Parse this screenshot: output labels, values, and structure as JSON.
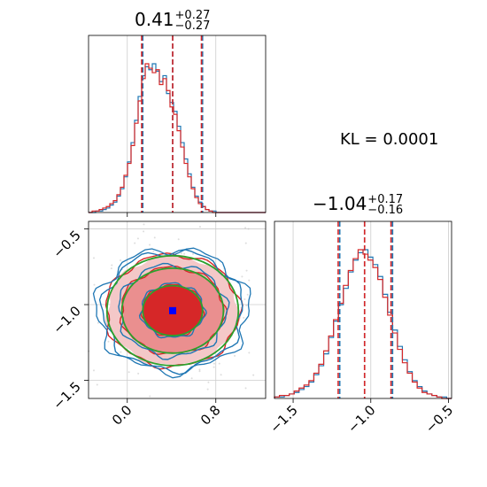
{
  "annotation": {
    "kl_text": "KL = 0.0001"
  },
  "titles": {
    "p1": {
      "value": "0.41",
      "plus": "+0.27",
      "minus": "−0.27"
    },
    "p2": {
      "value": "−1.04",
      "plus": "+0.17",
      "minus": "−0.16"
    }
  },
  "colors": {
    "blue": "#1f77b4",
    "red": "#d62728",
    "green": "#2ca02c",
    "marker": "#0000ff"
  },
  "chart_data": [
    {
      "type": "histogram",
      "panel": "marginal-param-1",
      "xlim": [
        -0.35,
        1.25
      ],
      "bins_edges_start": -0.35,
      "bin_width": 0.032,
      "series": [
        {
          "color": "blue",
          "values": [
            0,
            0,
            1,
            1,
            2,
            3,
            5,
            7,
            11,
            16,
            24,
            34,
            47,
            62,
            78,
            92,
            98,
            96,
            100,
            95,
            88,
            92,
            80,
            74,
            68,
            58,
            47,
            36,
            26,
            17,
            11,
            7,
            4,
            2,
            1,
            1,
            0,
            0,
            0,
            0,
            0,
            0,
            0,
            0,
            0,
            0,
            0,
            0,
            0,
            0
          ]
        },
        {
          "color": "red",
          "values": [
            0,
            1,
            1,
            2,
            3,
            4,
            6,
            8,
            12,
            17,
            25,
            33,
            45,
            60,
            75,
            90,
            100,
            97,
            94,
            96,
            86,
            90,
            82,
            71,
            66,
            55,
            44,
            33,
            24,
            16,
            10,
            6,
            4,
            2,
            1,
            0,
            0,
            0,
            0,
            0,
            0,
            0,
            0,
            0,
            0,
            0,
            0,
            0,
            0,
            0
          ]
        }
      ],
      "quantile_lines": {
        "blue": [
          0.14,
          0.41,
          0.68
        ],
        "red": [
          0.13,
          0.41,
          0.67
        ]
      },
      "x_ticks": [
        0.0,
        0.8
      ]
    },
    {
      "type": "histogram",
      "panel": "marginal-param-2",
      "xlim": [
        -1.62,
        -0.48
      ],
      "series": [
        {
          "color": "blue",
          "values": [
            1,
            1,
            2,
            3,
            4,
            6,
            8,
            11,
            16,
            22,
            30,
            41,
            52,
            63,
            74,
            85,
            93,
            98,
            100,
            95,
            90,
            82,
            70,
            58,
            46,
            35,
            26,
            18,
            12,
            8,
            5,
            3,
            2,
            1,
            1,
            0
          ]
        },
        {
          "color": "red",
          "values": [
            1,
            2,
            2,
            3,
            5,
            7,
            9,
            12,
            17,
            23,
            32,
            42,
            53,
            64,
            76,
            86,
            94,
            100,
            97,
            93,
            88,
            80,
            68,
            56,
            44,
            33,
            24,
            17,
            11,
            7,
            4,
            3,
            2,
            1,
            0,
            0
          ]
        }
      ],
      "quantile_lines": {
        "blue": [
          -1.2,
          -1.04,
          -0.86
        ],
        "red": [
          -1.21,
          -1.04,
          -0.87
        ]
      },
      "x_ticks": [
        -1.5,
        -1.0,
        -0.5
      ]
    },
    {
      "type": "contour",
      "panel": "joint-param-1-param-2",
      "xlim": [
        -0.35,
        1.25
      ],
      "ylim": [
        -1.62,
        -0.45
      ],
      "center": [
        0.41,
        -1.04
      ],
      "sigma_x": 0.27,
      "sigma_y": 0.165,
      "levels_sigma": [
        1.0,
        1.7,
        2.2
      ],
      "x_ticks": [
        0.0,
        0.8
      ],
      "y_ticks": [
        -0.5,
        -1.0,
        -1.5
      ],
      "marker": {
        "x": 0.41,
        "y": -1.04
      }
    }
  ]
}
